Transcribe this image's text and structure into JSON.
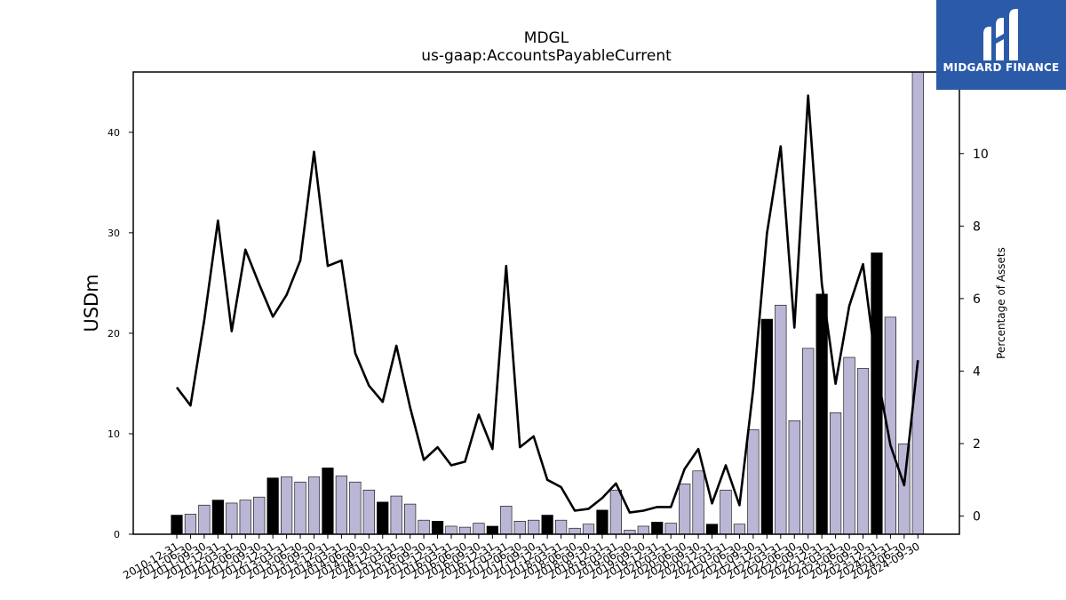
{
  "logo": {
    "text": "MIDGARD FINANCE",
    "background": "#2b5aa8"
  },
  "chart_data": {
    "type": "bar",
    "title": "MDGL",
    "subtitle": "us-gaap:AccountsPayableCurrent",
    "ylabel": "USDm",
    "y2label": "Percentage of Assets",
    "ylim": [
      0,
      46
    ],
    "y2lim": [
      -0.5,
      12.25
    ],
    "yticks": [
      0,
      10,
      20,
      30,
      40
    ],
    "y2ticks": [
      0,
      2,
      4,
      6,
      8,
      10
    ],
    "categories": [
      "2010-12-31",
      "2011-06-30",
      "2011-09-30",
      "2011-12-31",
      "2012-03-31",
      "2012-06-30",
      "2012-09-30",
      "2012-12-31",
      "2013-03-31",
      "2013-06-30",
      "2013-09-30",
      "2013-12-31",
      "2014-03-31",
      "2014-06-30",
      "2014-09-30",
      "2014-12-31",
      "2015-03-31",
      "2015-06-30",
      "2015-09-30",
      "2015-12-31",
      "2016-03-31",
      "2016-06-30",
      "2016-09-30",
      "2016-12-31",
      "2017-03-31",
      "2017-06-30",
      "2017-09-30",
      "2017-12-31",
      "2018-03-31",
      "2018-06-30",
      "2018-09-30",
      "2018-12-31",
      "2019-03-31",
      "2019-06-30",
      "2019-09-30",
      "2019-12-31",
      "2020-03-31",
      "2020-06-30",
      "2020-09-30",
      "2020-12-31",
      "2021-03-31",
      "2021-06-30",
      "2021-09-30",
      "2021-12-31",
      "2022-03-31",
      "2022-06-30",
      "2022-09-30",
      "2022-12-31",
      "2023-03-31",
      "2023-06-30",
      "2023-09-30",
      "2023-12-31",
      "2024-03-31",
      "2024-06-30",
      "2024-09-30"
    ],
    "series": [
      {
        "type": "bar",
        "axis": "left",
        "values": [
          1.9,
          2.0,
          2.9,
          3.4,
          3.1,
          3.4,
          3.7,
          5.6,
          5.7,
          5.2,
          5.7,
          6.6,
          5.8,
          5.2,
          4.4,
          3.2,
          3.8,
          3.0,
          1.4,
          1.3,
          0.8,
          0.7,
          1.1,
          0.8,
          2.8,
          1.3,
          1.4,
          1.9,
          1.4,
          0.6,
          1.0,
          2.4,
          4.4,
          0.4,
          0.8,
          1.2,
          1.1,
          5.0,
          6.3,
          1.0,
          4.4,
          1.0,
          10.4,
          21.4,
          22.8,
          11.3,
          18.5,
          23.9,
          12.1,
          17.6,
          16.5,
          28.0,
          21.6,
          9.0,
          46.0
        ],
        "colors_note": "black bars mark fiscal year-end (Dec 31) periods",
        "highlight_color": "#000000",
        "base_color": "#bab6d6"
      },
      {
        "type": "line",
        "axis": "right",
        "color": "#000000",
        "values": [
          3.55,
          3.05,
          5.4,
          8.15,
          5.1,
          7.35,
          6.4,
          5.5,
          6.1,
          7.05,
          10.05,
          6.9,
          7.05,
          4.5,
          3.6,
          3.15,
          4.7,
          3.0,
          1.55,
          1.9,
          1.4,
          1.5,
          2.8,
          1.85,
          6.9,
          1.9,
          2.2,
          1.0,
          0.8,
          0.15,
          0.2,
          0.5,
          0.9,
          0.1,
          0.15,
          0.25,
          0.25,
          1.3,
          1.85,
          0.35,
          1.4,
          0.3,
          3.5,
          7.8,
          10.2,
          5.2,
          11.6,
          6.4,
          3.65,
          5.8,
          6.95,
          4.0,
          1.95,
          0.85,
          4.3
        ]
      }
    ],
    "highlight": [
      true,
      false,
      false,
      true,
      false,
      false,
      false,
      true,
      false,
      false,
      false,
      true,
      false,
      false,
      false,
      true,
      false,
      false,
      false,
      true,
      false,
      false,
      false,
      true,
      false,
      false,
      false,
      true,
      false,
      false,
      false,
      true,
      false,
      false,
      false,
      true,
      false,
      false,
      false,
      true,
      false,
      false,
      false,
      true,
      false,
      false,
      false,
      true,
      false,
      false,
      false,
      true,
      false,
      false,
      false
    ],
    "grid": false,
    "legend": "none"
  }
}
